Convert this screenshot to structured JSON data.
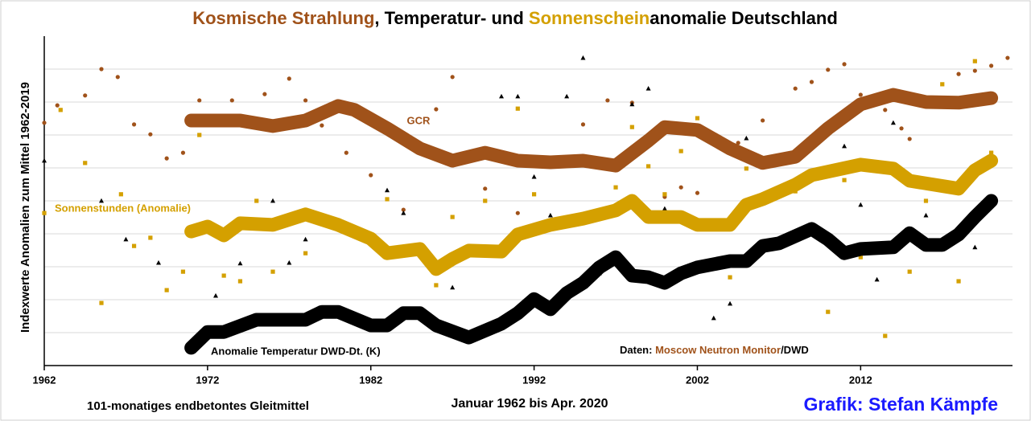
{
  "chart_data": {
    "type": "line",
    "title_parts": [
      {
        "text": "Kosmische Strahlung",
        "color": "#a0521a"
      },
      {
        "text": ", Temperatur- und ",
        "color": "#000000"
      },
      {
        "text": "Sonnenschein",
        "color": "#d4a000"
      },
      {
        "text": "anomalie Deutschland",
        "color": "#000000"
      }
    ],
    "y_label": "Indexwerte Anomalien zum Mittel 1962-2019",
    "xlim": [
      1962,
      2021.3
    ],
    "xticks": [
      1962,
      1972,
      1982,
      1992,
      2002,
      2012
    ],
    "ylim": [
      0,
      10
    ],
    "yticks": [
      1,
      2,
      3,
      4,
      5,
      6,
      7,
      8,
      9
    ],
    "grid": true,
    "series": [
      {
        "name": "GCR",
        "color": "#a0521a",
        "x": [
          1971,
          1974,
          1976,
          1978,
          1980,
          1981,
          1983,
          1985,
          1987,
          1989,
          1991,
          1993,
          1995,
          1997,
          1999,
          2000,
          2002,
          2004,
          2006,
          2008,
          2010,
          2012,
          2014,
          2016,
          2018,
          2020
        ],
        "values": [
          7.44,
          7.44,
          7.27,
          7.44,
          7.88,
          7.76,
          7.2,
          6.59,
          6.22,
          6.46,
          6.22,
          6.17,
          6.22,
          6.07,
          6.83,
          7.24,
          7.15,
          6.59,
          6.15,
          6.34,
          7.2,
          7.93,
          8.22,
          8.0,
          7.98,
          8.12
        ],
        "dots": {
          "marker": "circle",
          "x": [
            1962,
            1962.8,
            1964.5,
            1965.5,
            1966.5,
            1967.5,
            1968.5,
            1969.5,
            1970.5,
            1971.5,
            1973.5,
            1975.5,
            1977,
            1978,
            1979,
            1980.5,
            1982,
            1984,
            1986,
            1987,
            1989,
            1991,
            1995,
            1996.5,
            1998,
            2000,
            2001,
            2002,
            2004.5,
            2006,
            2008,
            2009,
            2010,
            2011,
            2012,
            2013.5,
            2014.5,
            2015,
            2018,
            2019,
            2020,
            2021
          ],
          "values": [
            7.37,
            7.9,
            8.2,
            9.0,
            8.76,
            7.32,
            7.02,
            6.29,
            6.46,
            8.05,
            8.05,
            8.24,
            8.71,
            8.05,
            7.29,
            6.46,
            5.78,
            4.73,
            7.78,
            8.76,
            5.37,
            4.63,
            7.32,
            8.05,
            7.98,
            5.12,
            5.41,
            5.24,
            6.76,
            7.44,
            8.41,
            8.61,
            8.98,
            9.15,
            8.22,
            7.76,
            7.2,
            6.88,
            8.85,
            8.95,
            9.1,
            9.34
          ]
        }
      },
      {
        "name": "Sonnenstunden (Anomalie)",
        "color": "#d4a000",
        "x": [
          1971,
          1972,
          1973,
          1974,
          1976,
          1978,
          1980,
          1982,
          1983,
          1985,
          1986,
          1987,
          1988,
          1990,
          1991,
          1993,
          1995,
          1997,
          1998,
          1999,
          2001,
          2002,
          2004,
          2005,
          2006,
          2008,
          2009,
          2012,
          2014,
          2015,
          2018,
          2019,
          2020
        ],
        "values": [
          4.07,
          4.22,
          3.95,
          4.32,
          4.27,
          4.59,
          4.27,
          3.85,
          3.41,
          3.54,
          2.93,
          3.24,
          3.49,
          3.46,
          3.98,
          4.27,
          4.46,
          4.71,
          5.0,
          4.51,
          4.51,
          4.27,
          4.27,
          4.88,
          5.05,
          5.49,
          5.78,
          6.1,
          5.98,
          5.61,
          5.37,
          5.93,
          6.22
        ],
        "dots": {
          "marker": "square",
          "x": [
            1962,
            1963,
            1964.5,
            1965.5,
            1966.7,
            1967.5,
            1968.5,
            1969.5,
            1970.5,
            1971.5,
            1973,
            1974,
            1975,
            1976,
            1978,
            1983,
            1985,
            1986,
            1987,
            1989,
            1991,
            1992,
            1997,
            1998,
            1999,
            2000,
            2001,
            2002,
            2004,
            2005,
            2008,
            2010,
            2011,
            2012,
            2013.5,
            2015,
            2016,
            2017,
            2018,
            2019,
            2020
          ],
          "values": [
            4.63,
            7.76,
            6.15,
            1.9,
            5.2,
            3.63,
            3.88,
            2.29,
            2.85,
            7.0,
            2.73,
            2.56,
            5.0,
            2.85,
            3.41,
            5.05,
            3.59,
            2.44,
            4.51,
            5.0,
            7.8,
            5.2,
            5.41,
            7.24,
            6.05,
            5.2,
            6.51,
            7.51,
            2.68,
            5.98,
            5.29,
            1.63,
            5.63,
            3.29,
            0.9,
            2.85,
            5.0,
            8.54,
            2.56,
            9.24,
            6.46
          ]
        }
      },
      {
        "name": "Anomalie Temperatur DWD-Dt. (K)",
        "color": "#000000",
        "x": [
          1971,
          1972,
          1973,
          1975,
          1976,
          1978,
          1979,
          1980,
          1982,
          1983,
          1984,
          1985,
          1986,
          1988,
          1990,
          1991,
          1992,
          1993,
          1994,
          1995,
          1996,
          1997,
          1998,
          1999,
          2000,
          2001,
          2002,
          2004,
          2005,
          2006,
          2007,
          2009,
          2010,
          2011,
          2012,
          2014,
          2015,
          2016,
          2017,
          2018,
          2019,
          2020
        ],
        "values": [
          0.54,
          1.02,
          1.02,
          1.39,
          1.39,
          1.39,
          1.63,
          1.63,
          1.22,
          1.22,
          1.59,
          1.59,
          1.22,
          0.85,
          1.27,
          1.59,
          2.02,
          1.71,
          2.2,
          2.51,
          2.98,
          3.29,
          2.73,
          2.68,
          2.51,
          2.8,
          2.98,
          3.17,
          3.17,
          3.63,
          3.71,
          4.15,
          3.83,
          3.41,
          3.54,
          3.59,
          4.02,
          3.66,
          3.66,
          3.98,
          4.51,
          5.0
        ],
        "dots": {
          "marker": "triangle",
          "x": [
            1962,
            1965.5,
            1967,
            1969,
            1972.5,
            1974,
            1976,
            1977,
            1978,
            1983,
            1984,
            1987,
            1990,
            1991,
            1992,
            1993,
            1994,
            1995,
            1996,
            1998,
            1999,
            2000,
            2003,
            2004,
            2005,
            2011,
            2012,
            2013,
            2014,
            2016,
            2019
          ],
          "values": [
            6.22,
            5.0,
            3.83,
            3.12,
            2.12,
            3.1,
            5.0,
            3.12,
            3.83,
            5.32,
            4.63,
            2.37,
            8.17,
            8.17,
            5.73,
            4.56,
            8.17,
            9.34,
            2.8,
            7.93,
            8.41,
            4.76,
            1.44,
            1.88,
            6.9,
            6.66,
            4.88,
            2.61,
            7.37,
            4.56,
            3.59
          ]
        }
      }
    ],
    "source_parts": [
      {
        "text": "Daten: ",
        "color": "#000000"
      },
      {
        "text": "Moscow Neutron Monitor",
        "color": "#a0521a"
      },
      {
        "text": "/DWD",
        "color": "#000000"
      }
    ],
    "footer_left": "101-monatiges endbetontes Gleitmittel",
    "footer_center": "Januar 1962 bis Apr. 2020",
    "credit": "Grafik: Stefan Kämpfe"
  }
}
